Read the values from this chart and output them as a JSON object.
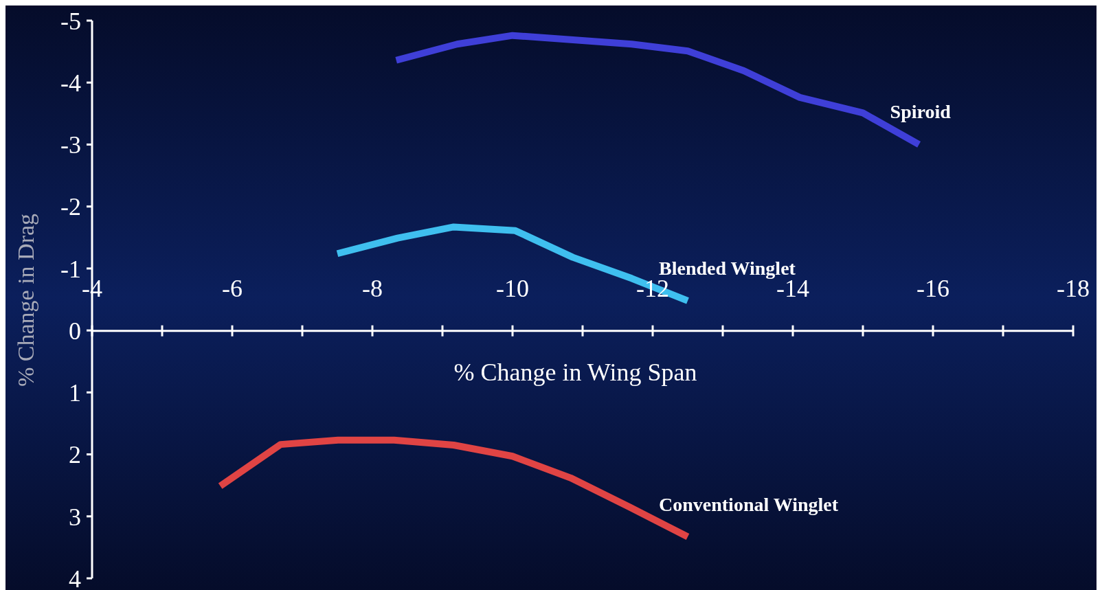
{
  "chart_data": {
    "type": "line",
    "xlabel": "% Change in Wing Span",
    "ylabel": "% Change in Drag",
    "xlim": [
      -4,
      -18
    ],
    "ylim": [
      4,
      -5
    ],
    "xticks": [
      -4,
      {
        "value": -5,
        "label": null
      },
      -6,
      {
        "value": -7,
        "label": null
      },
      -8,
      {
        "value": -9,
        "label": null
      },
      -10,
      {
        "value": -11,
        "label": null
      },
      -12,
      {
        "value": -13,
        "label": null
      },
      -14,
      {
        "value": -15,
        "label": null
      },
      -16,
      {
        "value": -17,
        "label": null
      },
      -18
    ],
    "yticks": [
      -5,
      -4,
      -3,
      -2,
      -1,
      0,
      1,
      2,
      3,
      4
    ],
    "marker": "none",
    "line_style": "solid",
    "series": [
      {
        "name": "Spiroid",
        "color": "#3f3fd8",
        "x": [
          -8.34,
          -9.21,
          -10.0,
          -11.7,
          -12.5,
          -13.3,
          -14.1,
          -15.0,
          -15.8
        ],
        "values": [
          -4.36,
          -4.62,
          -4.76,
          -4.62,
          -4.51,
          -4.19,
          -3.76,
          -3.51,
          -3.0
        ]
      },
      {
        "name": "Blended Winglet",
        "color": "#3fbfef",
        "x": [
          -7.5,
          -8.36,
          -9.16,
          -10.04,
          -10.86,
          -11.7,
          -12.5
        ],
        "values": [
          -1.24,
          -1.49,
          -1.67,
          -1.61,
          -1.18,
          -0.84,
          -0.48
        ]
      },
      {
        "name": "Conventional Winglet",
        "color": "#e04444",
        "x": [
          -5.83,
          -6.69,
          -7.51,
          -8.31,
          -9.16,
          -10.0,
          -10.83,
          -11.67,
          -12.5
        ],
        "values": [
          2.51,
          1.84,
          1.77,
          1.77,
          1.85,
          2.03,
          2.38,
          2.85,
          3.33
        ]
      }
    ]
  }
}
